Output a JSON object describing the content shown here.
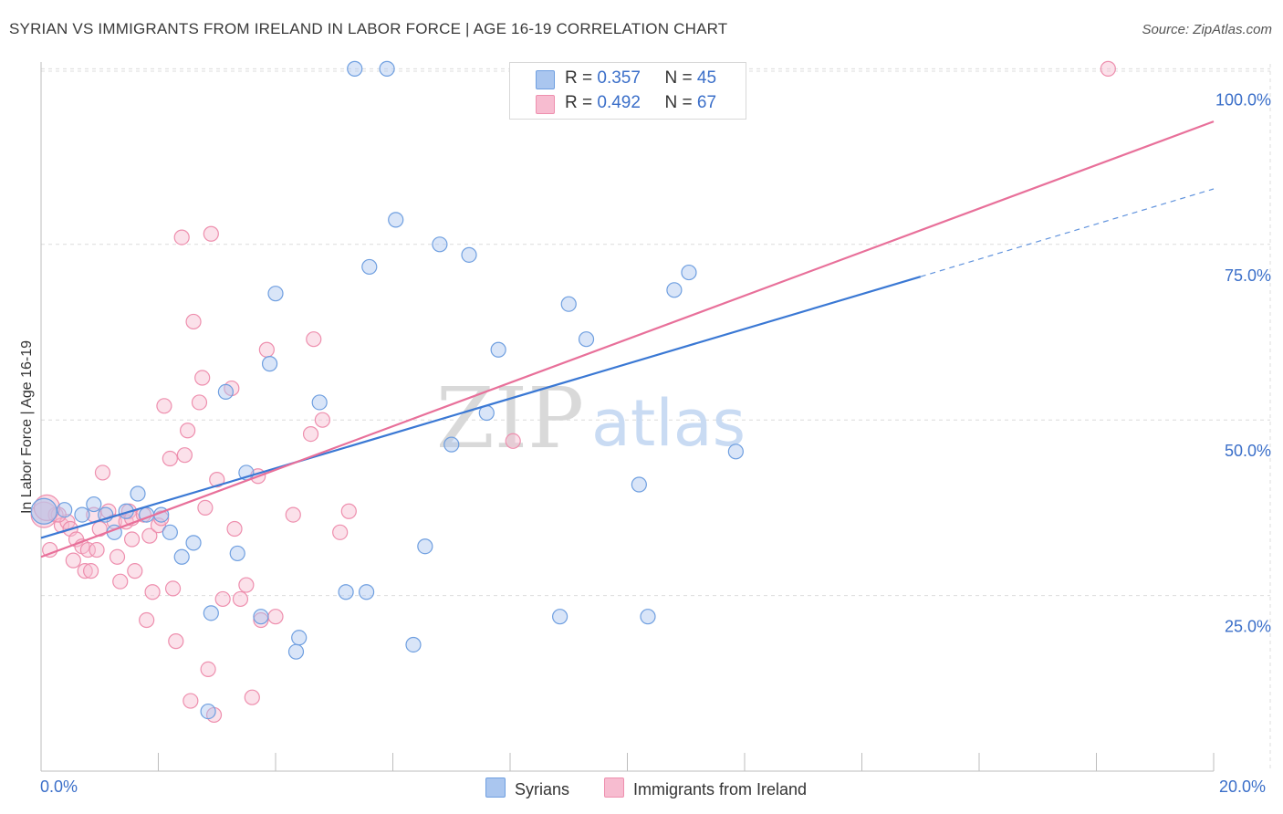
{
  "header": {
    "title": "SYRIAN VS IMMIGRANTS FROM IRELAND IN LABOR FORCE | AGE 16-19 CORRELATION CHART",
    "source": "Source: ZipAtlas.com"
  },
  "legend": {
    "r_label": "R =",
    "n_label": "N =",
    "series": [
      {
        "name": "Syrians",
        "r": "0.357",
        "n": "45",
        "fill": "#aac6ef",
        "stroke": "#6f9fe0"
      },
      {
        "name": "Immigrants from Ireland",
        "r": "0.492",
        "n": "67",
        "fill": "#f7bcd0",
        "stroke": "#ee8fae"
      }
    ]
  },
  "watermark": {
    "zip": "ZIP",
    "atlas": "atlas"
  },
  "chart_data": {
    "type": "scatter",
    "title": "SYRIAN VS IMMIGRANTS FROM IRELAND IN LABOR FORCE | AGE 16-19 CORRELATION CHART",
    "xlabel": "",
    "ylabel": "In Labor Force | Age 16-19",
    "xlim": [
      0,
      20
    ],
    "ylim": [
      0,
      102
    ],
    "x_tick_labels": [
      "0.0%",
      "20.0%"
    ],
    "y_ticks": [
      25,
      50,
      75,
      100
    ],
    "y_tick_labels": [
      "25.0%",
      "50.0%",
      "75.0%",
      "100.0%"
    ],
    "grid": true,
    "series": [
      {
        "name": "Syrians",
        "color": "#3a78d4",
        "trend": {
          "x0": 0,
          "y0": 33.2,
          "x1": 15.0,
          "y1": 70.4,
          "dash_to_x": 20.0,
          "dash_to_y": 82.9
        },
        "points": [
          [
            0.05,
            37.0
          ],
          [
            0.4,
            37.2
          ],
          [
            0.7,
            36.5
          ],
          [
            0.9,
            38.0
          ],
          [
            1.1,
            36.5
          ],
          [
            1.25,
            34.0
          ],
          [
            1.45,
            37.0
          ],
          [
            1.65,
            39.5
          ],
          [
            1.8,
            36.5
          ],
          [
            2.05,
            36.5
          ],
          [
            2.2,
            34.0
          ],
          [
            2.4,
            30.5
          ],
          [
            2.6,
            32.5
          ],
          [
            2.9,
            22.5
          ],
          [
            2.85,
            8.5
          ],
          [
            3.15,
            54.0
          ],
          [
            3.35,
            31.0
          ],
          [
            3.5,
            42.5
          ],
          [
            3.75,
            22.0
          ],
          [
            3.9,
            58.0
          ],
          [
            4.0,
            68.0
          ],
          [
            4.35,
            17.0
          ],
          [
            4.4,
            19.0
          ],
          [
            4.75,
            52.5
          ],
          [
            5.2,
            25.5
          ],
          [
            5.35,
            100.0
          ],
          [
            5.55,
            25.5
          ],
          [
            5.6,
            71.8
          ],
          [
            5.9,
            100.0
          ],
          [
            6.05,
            78.5
          ],
          [
            6.35,
            18.0
          ],
          [
            6.55,
            32.0
          ],
          [
            6.8,
            75.0
          ],
          [
            7.0,
            46.5
          ],
          [
            7.3,
            73.5
          ],
          [
            7.6,
            51.0
          ],
          [
            7.8,
            60.0
          ],
          [
            8.85,
            22.0
          ],
          [
            9.0,
            66.5
          ],
          [
            9.3,
            61.5
          ],
          [
            10.2,
            40.8
          ],
          [
            10.35,
            22.0
          ],
          [
            10.8,
            68.5
          ],
          [
            11.05,
            71.0
          ],
          [
            11.85,
            45.5
          ]
        ]
      },
      {
        "name": "Immigrants from Ireland",
        "color": "#e8709a",
        "trend": {
          "x0": 0,
          "y0": 30.5,
          "x1": 20.0,
          "y1": 92.5
        },
        "points": [
          [
            0.05,
            36.5
          ],
          [
            0.15,
            31.5
          ],
          [
            0.25,
            36.5
          ],
          [
            0.35,
            35.0
          ],
          [
            0.45,
            35.5
          ],
          [
            0.5,
            34.5
          ],
          [
            0.55,
            30.0
          ],
          [
            0.6,
            33.0
          ],
          [
            0.7,
            32.0
          ],
          [
            0.75,
            28.5
          ],
          [
            0.8,
            31.5
          ],
          [
            0.85,
            28.5
          ],
          [
            0.9,
            36.5
          ],
          [
            0.95,
            31.5
          ],
          [
            1.0,
            34.5
          ],
          [
            1.05,
            42.5
          ],
          [
            1.15,
            37.0
          ],
          [
            1.25,
            35.5
          ],
          [
            1.3,
            30.5
          ],
          [
            1.35,
            27.0
          ],
          [
            1.45,
            35.5
          ],
          [
            1.5,
            37.0
          ],
          [
            1.55,
            36.0
          ],
          [
            1.6,
            28.5
          ],
          [
            1.75,
            36.5
          ],
          [
            1.8,
            21.5
          ],
          [
            1.85,
            33.5
          ],
          [
            1.9,
            25.5
          ],
          [
            2.0,
            35.0
          ],
          [
            2.05,
            36.0
          ],
          [
            2.1,
            52.0
          ],
          [
            2.2,
            44.5
          ],
          [
            2.25,
            26.0
          ],
          [
            2.3,
            18.5
          ],
          [
            2.4,
            76.0
          ],
          [
            2.45,
            45.0
          ],
          [
            2.5,
            48.5
          ],
          [
            2.55,
            10.0
          ],
          [
            2.6,
            64.0
          ],
          [
            2.7,
            52.5
          ],
          [
            2.75,
            56.0
          ],
          [
            2.8,
            37.5
          ],
          [
            2.85,
            14.5
          ],
          [
            2.9,
            76.5
          ],
          [
            2.95,
            8.0
          ],
          [
            3.0,
            41.5
          ],
          [
            3.1,
            24.5
          ],
          [
            3.25,
            54.5
          ],
          [
            3.3,
            34.5
          ],
          [
            3.4,
            24.5
          ],
          [
            3.5,
            26.5
          ],
          [
            3.75,
            21.5
          ],
          [
            3.85,
            60.0
          ],
          [
            3.6,
            10.5
          ],
          [
            4.0,
            22.0
          ],
          [
            4.6,
            48.0
          ],
          [
            4.65,
            61.5
          ],
          [
            4.8,
            50.0
          ],
          [
            5.1,
            34.0
          ],
          [
            5.25,
            37.0
          ],
          [
            4.3,
            36.5
          ],
          [
            3.7,
            42.0
          ],
          [
            1.55,
            33.0
          ],
          [
            0.3,
            36.5
          ],
          [
            8.05,
            47.0
          ],
          [
            18.2,
            100.0
          ],
          [
            0.1,
            37.5
          ]
        ]
      }
    ]
  }
}
